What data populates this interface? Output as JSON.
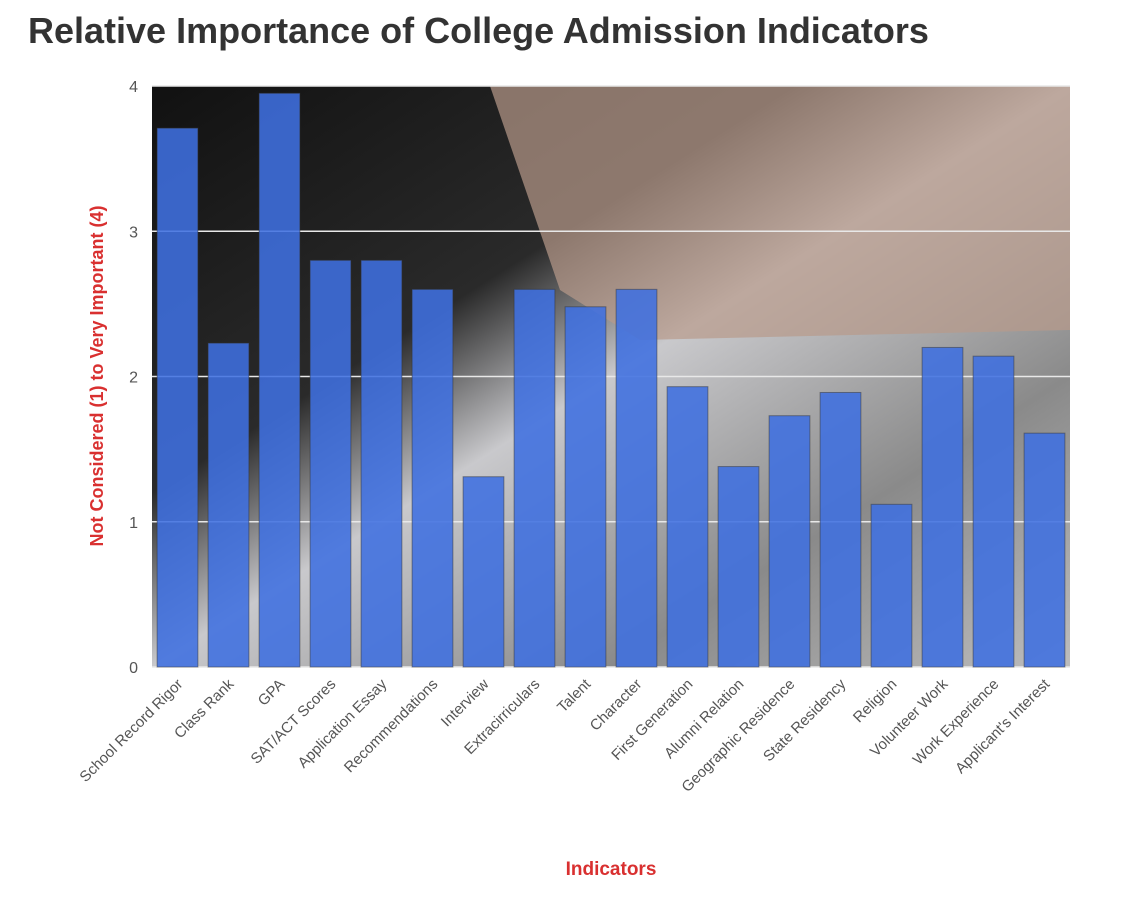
{
  "chart_data": {
    "type": "bar",
    "title": "Relative Importance of College Admission Indicators",
    "xlabel": "Indicators",
    "ylabel": "Not Considered (1) to Very Important (4)",
    "ylim": [
      0,
      4
    ],
    "yticks": [
      "0",
      "1",
      "2",
      "3",
      "4"
    ],
    "grid": true,
    "categories": [
      "School Record Rigor",
      "Class Rank",
      "GPA",
      "SAT/ACT Scores",
      "Application Essay",
      "Recommendations",
      "Interview",
      "Extracirriculars",
      "Talent",
      "Character",
      "First Generation",
      "Alumni Relation",
      "Geographic Residence",
      "State Residency",
      "Religion",
      "Volunteer Work",
      "Work Experience",
      "Applicant's Interest"
    ],
    "values": [
      3.71,
      2.23,
      3.95,
      2.8,
      2.8,
      2.6,
      1.31,
      2.6,
      2.48,
      2.6,
      1.93,
      1.38,
      1.73,
      1.89,
      1.12,
      2.2,
      2.14,
      1.61
    ],
    "bar_color": "#3f6fe0",
    "label_color": "#d93030"
  }
}
